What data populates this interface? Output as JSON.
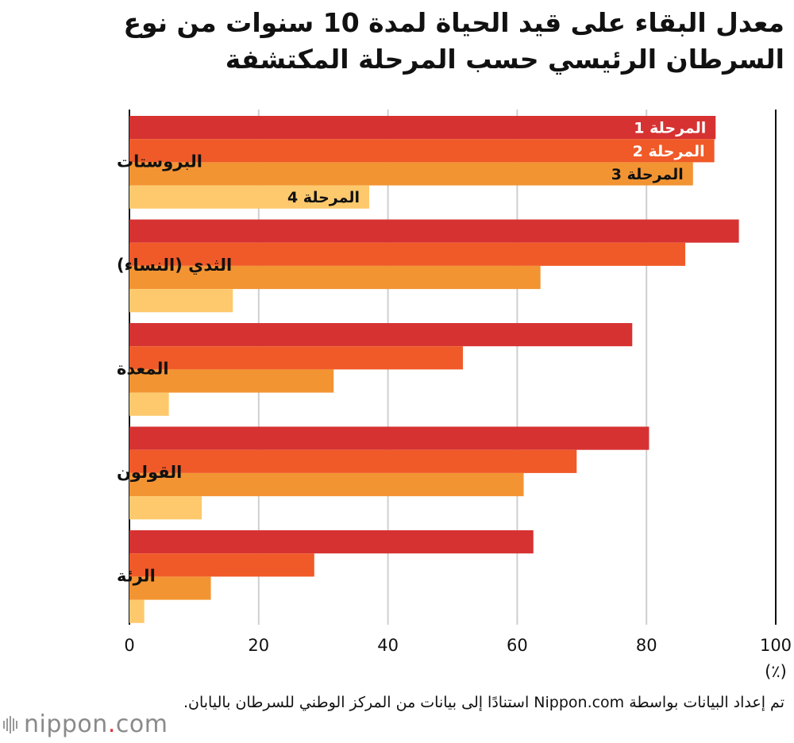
{
  "title": "معدل البقاء على قيد الحياة لمدة 10 سنوات من نوع السرطان الرئيسي حسب المرحلة المكتشفة",
  "chart_data": {
    "type": "bar",
    "orientation": "horizontal",
    "title": "معدل البقاء على قيد الحياة لمدة 10 سنوات من نوع السرطان الرئيسي حسب المرحلة المكتشفة",
    "categories": [
      "البروستات",
      "الثدي (النساء)",
      "المعدة",
      "القولون",
      "الرئة"
    ],
    "series": [
      {
        "name": "المرحلة 1",
        "color": "#d63232",
        "values": [
          90.7,
          94.3,
          77.8,
          80.4,
          62.5
        ]
      },
      {
        "name": "المرحلة 2",
        "color": "#f05a28",
        "values": [
          90.5,
          86.0,
          51.6,
          69.2,
          28.6
        ]
      },
      {
        "name": "المرحلة 3",
        "color": "#f39433",
        "values": [
          87.2,
          63.6,
          31.6,
          61.0,
          12.6
        ]
      },
      {
        "name": "المرحلة 4",
        "color": "#fdc96c",
        "values": [
          37.1,
          16.0,
          6.1,
          11.2,
          2.3
        ]
      }
    ],
    "xlabel": "(٪)",
    "ylabel": "",
    "xlim": [
      0,
      100
    ],
    "xticks": [
      0,
      20,
      40,
      60,
      80,
      100
    ],
    "grid": true,
    "legend": "inline-labels"
  },
  "source": "تم إعداد البيانات بواسطة Nippon.com استنادًا إلى بيانات من المركز الوطني للسرطان باليابان.",
  "logo": {
    "text": "nippon",
    "dot": ".",
    "suffix": "com"
  }
}
